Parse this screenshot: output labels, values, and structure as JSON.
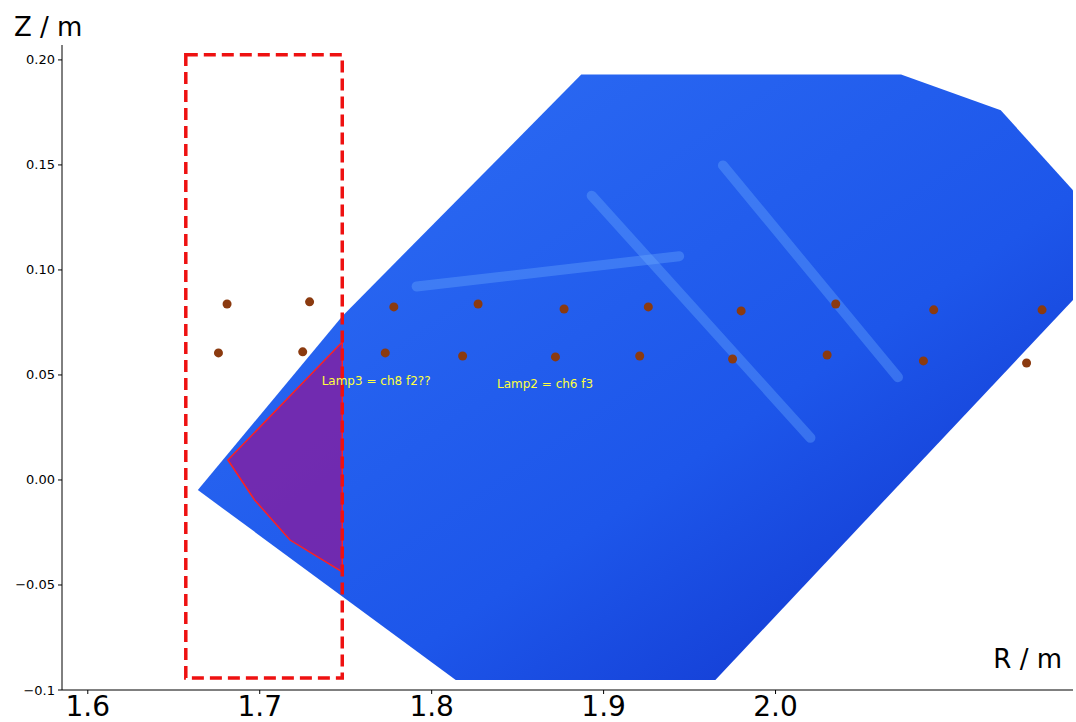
{
  "chart_data": {
    "type": "scatter",
    "x_label": "R / m",
    "y_label": "Z / m",
    "xlim": [
      1.585,
      2.173
    ],
    "ylim": [
      -0.1,
      0.2071
    ],
    "xticks": [
      1.6,
      1.7,
      1.8,
      1.9,
      {
        "value": 2.0,
        "label": "2.0"
      }
    ],
    "yticks": [
      {
        "value": -0.1,
        "label": "−0.1"
      },
      {
        "value": -0.05,
        "label": "−0.05"
      },
      {
        "value": 0,
        "label": "0.00"
      },
      0.05,
      {
        "value": 0.1,
        "label": "0.10"
      },
      0.15,
      {
        "value": 0.2,
        "label": "0.20"
      }
    ],
    "grid": false,
    "series": [
      {
        "type": "polygon",
        "color": "#1f5ef0",
        "x": [
          1.664,
          1.748,
          1.887,
          2.073,
          2.131,
          2.173,
          2.173,
          1.965,
          1.814
        ],
        "values": [
          -0.0048,
          0.078,
          0.193,
          0.193,
          0.176,
          0.138,
          0.0857,
          -0.0952,
          -0.0952
        ]
      },
      {
        "type": "polygon",
        "color": "#8b1a9b",
        "x": [
          1.6815,
          1.748,
          1.748,
          1.7176,
          1.697
        ],
        "values": [
          0.0095,
          0.0657,
          -0.0438,
          -0.0286,
          -0.0095
        ]
      },
      {
        "type": "rect",
        "color": "#ee1111",
        "line_style": "dashed",
        "x": [
          1.657,
          1.748
        ],
        "values": [
          -0.0943,
          0.2024
        ]
      },
      {
        "type": "scatter",
        "color": "#8b3a0f",
        "marker": "circle",
        "x": [
          1.681,
          1.729,
          1.778,
          1.827,
          1.877,
          1.926,
          1.98,
          2.035,
          2.092,
          2.155,
          1.676,
          1.725,
          1.773,
          1.818,
          1.872,
          1.921,
          1.975,
          2.03,
          2.086,
          2.146
        ],
        "values": [
          0.0838,
          0.0848,
          0.0824,
          0.0838,
          0.0814,
          0.0824,
          0.0805,
          0.0838,
          0.081,
          0.081,
          0.0605,
          0.061,
          0.0605,
          0.059,
          0.0586,
          0.059,
          0.0576,
          0.0595,
          0.0567,
          0.0557
        ]
      }
    ],
    "annotations": [
      {
        "text": "Lamp3 = ch8 f2??",
        "x": 1.736,
        "y": 0.045
      },
      {
        "text": "Lamp2 = ch6 f3",
        "x": 1.838,
        "y": 0.044
      }
    ]
  }
}
